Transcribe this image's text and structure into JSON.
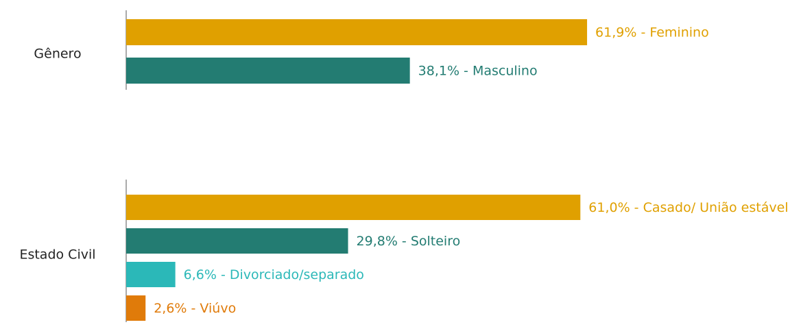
{
  "chart_data": [
    {
      "type": "barh",
      "title": "Gênero",
      "values": [
        61.9,
        38.1
      ],
      "value_labels": [
        "61,9% - Feminino",
        "38,1% - Masculino"
      ],
      "colors": [
        "#e0a000",
        "#237c72"
      ],
      "xlim": [
        0,
        70
      ]
    },
    {
      "type": "barh",
      "title": "Estado Civil",
      "values": [
        61.0,
        29.8,
        6.6,
        2.6
      ],
      "value_labels": [
        "61,0% - Casado/ União estável",
        "29,8% - Solteiro",
        "6,6% - Divorciado/separado",
        "2,6% - Viúvo"
      ],
      "colors": [
        "#e0a000",
        "#237c72",
        "#2bb8b8",
        "#e07b0a"
      ],
      "xlim": [
        0,
        70
      ]
    }
  ]
}
